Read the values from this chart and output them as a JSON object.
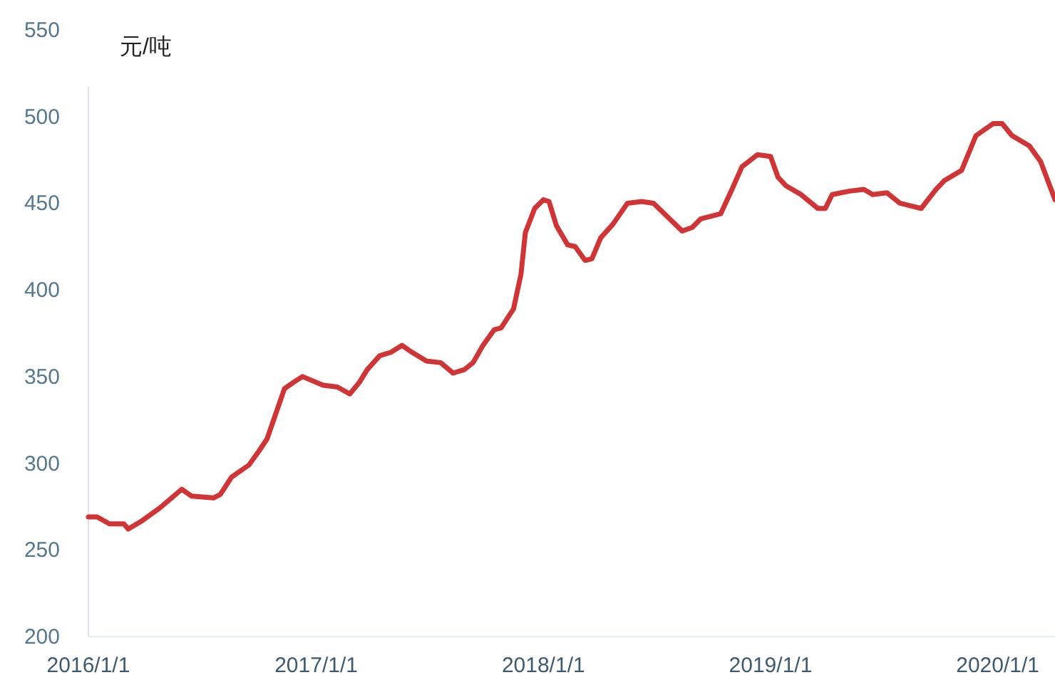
{
  "chart_data": {
    "type": "line",
    "ylabel": "元/吨",
    "x": [
      "2016-01-01",
      "2016-01-15",
      "2016-02-04",
      "2016-02-27",
      "2016-03-05",
      "2016-03-28",
      "2016-04-24",
      "2016-05-17",
      "2016-05-30",
      "2016-06-15",
      "2016-07-20",
      "2016-07-31",
      "2016-08-18",
      "2016-09-15",
      "2016-10-01",
      "2016-10-14",
      "2016-11-11",
      "2016-11-27",
      "2016-12-10",
      "2017-01-12",
      "2017-02-04",
      "2017-02-24",
      "2017-03-12",
      "2017-03-24",
      "2017-04-13",
      "2017-05-01",
      "2017-05-19",
      "2017-06-04",
      "2017-06-27",
      "2017-07-20",
      "2017-08-09",
      "2017-08-27",
      "2017-09-10",
      "2017-09-26",
      "2017-10-14",
      "2017-10-25",
      "2017-11-14",
      "2017-11-26",
      "2017-12-03",
      "2017-12-18",
      "2018-01-01",
      "2018-01-10",
      "2018-01-22",
      "2018-02-09",
      "2018-02-21",
      "2018-03-09",
      "2018-03-20",
      "2018-04-03",
      "2018-04-23",
      "2018-05-16",
      "2018-06-08",
      "2018-06-27",
      "2018-07-20",
      "2018-08-12",
      "2018-08-28",
      "2018-09-11",
      "2018-10-13",
      "2018-10-31",
      "2018-11-16",
      "2018-12-11",
      "2019-01-01",
      "2019-01-13",
      "2019-01-26",
      "2019-02-19",
      "2019-03-18",
      "2019-03-30",
      "2019-04-10",
      "2019-05-08",
      "2019-05-31",
      "2019-06-14",
      "2019-07-07",
      "2019-07-28",
      "2019-08-31",
      "2019-09-24",
      "2019-10-07",
      "2019-11-04",
      "2019-11-27",
      "2019-12-25",
      "2020-01-08",
      "2020-01-24",
      "2020-02-21",
      "2020-03-10",
      "2020-04-02"
    ],
    "series": [
      {
        "color": "#d03434",
        "values": [
          269,
          269,
          265,
          265,
          262,
          267,
          274,
          281,
          285,
          281,
          280,
          282,
          292,
          299,
          307,
          314,
          343,
          347,
          350,
          345,
          344,
          340,
          347,
          354,
          362,
          364,
          368,
          364,
          359,
          358,
          352,
          354,
          358,
          368,
          377,
          378,
          389,
          409,
          433,
          447,
          452,
          451,
          437,
          426,
          425,
          417,
          418,
          430,
          438,
          450,
          451,
          450,
          442,
          434,
          436,
          441,
          444,
          458,
          471,
          478,
          477,
          465,
          460,
          455,
          447,
          447,
          455,
          457,
          458,
          455,
          456,
          450,
          447,
          458,
          463,
          469,
          489,
          496,
          496,
          489,
          483,
          474,
          452
        ]
      }
    ],
    "xlim": [
      "2016-01-01",
      "2020-04-02"
    ],
    "xticks": [
      {
        "value": "2016-01-01",
        "label": "2016/1/1"
      },
      {
        "value": "2017-01-01",
        "label": "2017/1/1"
      },
      {
        "value": "2018-01-01",
        "label": "2018/1/1"
      },
      {
        "value": "2019-01-01",
        "label": "2019/1/1"
      },
      {
        "value": "2020-01-01",
        "label": "2020/1/1"
      }
    ],
    "ylim": [
      200,
      550
    ],
    "yticks": [
      200,
      250,
      300,
      350,
      400,
      450,
      500,
      550
    ]
  }
}
